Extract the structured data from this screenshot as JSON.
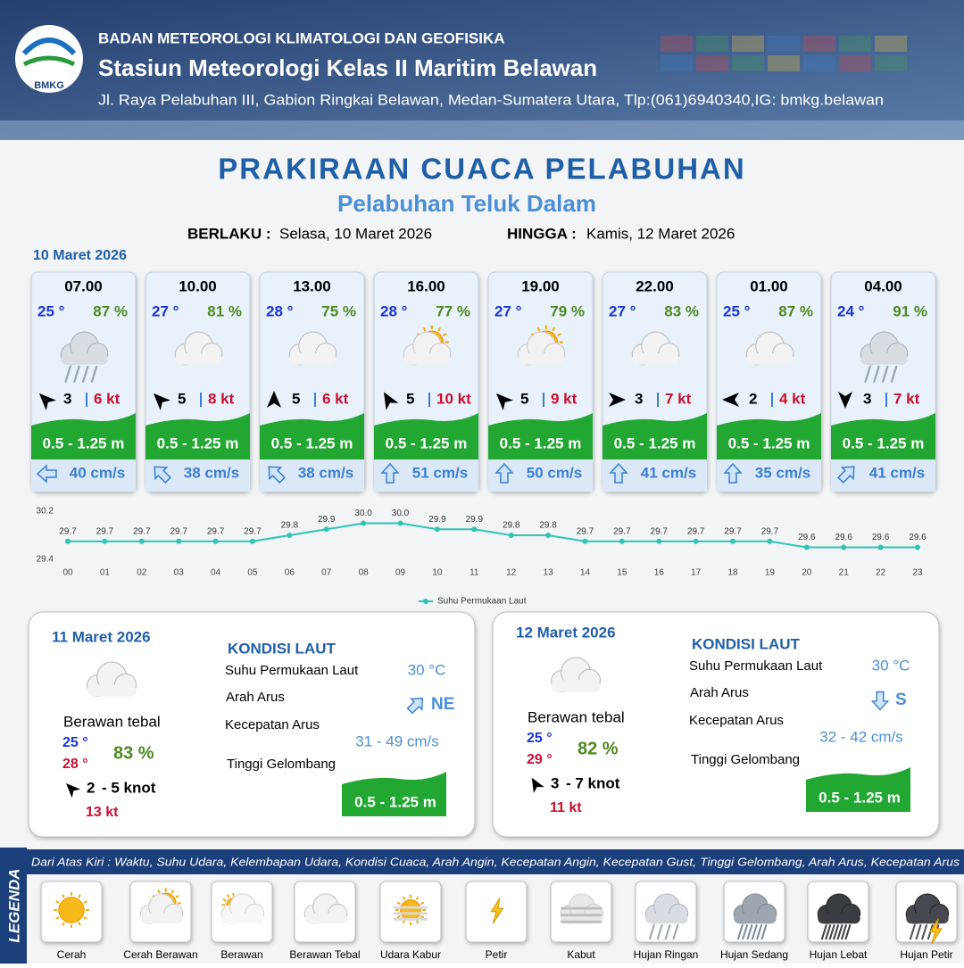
{
  "header": {
    "logo": "BMKG",
    "agency": "BADAN METEOROLOGI KLIMATOLOGI DAN GEOFISIKA",
    "station": "Stasiun Meteorologi Kelas II Maritim Belawan",
    "address": "Jl. Raya Pelabuhan III, Gabion Ringkai Belawan, Medan-Sumatera Utara, Tlp:(061)6940340,IG: bmkg.belawan"
  },
  "title": "PRAKIRAAN CUACA PELABUHAN",
  "subtitle": "Pelabuhan Teluk Dalam",
  "validity": {
    "from_label": "BERLAKU :",
    "from": "Selasa, 10 Maret 2026",
    "to_label": "HINGGA :",
    "to": "Kamis, 12 Maret 2026"
  },
  "today": {
    "date": "10 Maret 2026",
    "forecasts": [
      {
        "time": "07.00",
        "temperature": "25 °",
        "humidity": "87 %",
        "icon": "hujan-ringan",
        "wind_arrow_deg": 315,
        "wind_speed": "3",
        "gust": "6 kt",
        "wave": "0.5 - 1.25 m",
        "current_arrow_deg": 270,
        "current_speed": "40 cm/s"
      },
      {
        "time": "10.00",
        "temperature": "27 °",
        "humidity": "81 %",
        "icon": "berawan-tebal",
        "wind_arrow_deg": 315,
        "wind_speed": "5",
        "gust": "8 kt",
        "wave": "0.5 - 1.25 m",
        "current_arrow_deg": 315,
        "current_speed": "38 cm/s"
      },
      {
        "time": "13.00",
        "temperature": "28 °",
        "humidity": "75 %",
        "icon": "berawan-tebal",
        "wind_arrow_deg": 0,
        "wind_speed": "5",
        "gust": "6 kt",
        "wave": "0.5 - 1.25 m",
        "current_arrow_deg": 315,
        "current_speed": "38 cm/s"
      },
      {
        "time": "16.00",
        "temperature": "28 °",
        "humidity": "77 %",
        "icon": "cerah-berawan",
        "wind_arrow_deg": 330,
        "wind_speed": "5",
        "gust": "10 kt",
        "wave": "0.5 - 1.25 m",
        "current_arrow_deg": 0,
        "current_speed": "51 cm/s"
      },
      {
        "time": "19.00",
        "temperature": "27 °",
        "humidity": "79 %",
        "icon": "cerah-berawan",
        "wind_arrow_deg": 315,
        "wind_speed": "5",
        "gust": "9 kt",
        "wave": "0.5 - 1.25 m",
        "current_arrow_deg": 0,
        "current_speed": "50 cm/s"
      },
      {
        "time": "22.00",
        "temperature": "27 °",
        "humidity": "83 %",
        "icon": "berawan-tebal",
        "wind_arrow_deg": 90,
        "wind_speed": "3",
        "gust": "7 kt",
        "wave": "0.5 - 1.25 m",
        "current_arrow_deg": 0,
        "current_speed": "41 cm/s"
      },
      {
        "time": "01.00",
        "temperature": "25 °",
        "humidity": "87 %",
        "icon": "berawan-tebal",
        "wind_arrow_deg": 270,
        "wind_speed": "2",
        "gust": "4 kt",
        "wave": "0.5 - 1.25 m",
        "current_arrow_deg": 0,
        "current_speed": "35 cm/s"
      },
      {
        "time": "04.00",
        "temperature": "24 °",
        "humidity": "91 %",
        "icon": "hujan-ringan",
        "wind_arrow_deg": 180,
        "wind_speed": "3",
        "gust": "7 kt",
        "wave": "0.5 - 1.25 m",
        "current_arrow_deg": 45,
        "current_speed": "41 cm/s"
      }
    ]
  },
  "chart_data": {
    "type": "line",
    "categories": [
      "00",
      "01",
      "02",
      "03",
      "04",
      "05",
      "06",
      "07",
      "08",
      "09",
      "10",
      "11",
      "12",
      "13",
      "14",
      "15",
      "16",
      "17",
      "18",
      "19",
      "20",
      "21",
      "22",
      "23"
    ],
    "series": [
      {
        "name": "Suhu Permukaan Laut",
        "color": "#2ec4b6",
        "values": [
          29.7,
          29.7,
          29.7,
          29.7,
          29.7,
          29.7,
          29.8,
          29.9,
          30.0,
          30.0,
          29.9,
          29.9,
          29.8,
          29.8,
          29.7,
          29.7,
          29.7,
          29.7,
          29.7,
          29.7,
          29.6,
          29.6,
          29.6,
          29.6
        ],
        "value_labels": [
          "29.7",
          "29.7",
          "29.7",
          "29.7",
          "29.7",
          "29.7",
          "29.8",
          "29.9",
          "30.0",
          "30.0",
          "29.9",
          "29.9",
          "29.8",
          "29.8",
          "29.7",
          "29.7",
          "29.7",
          "29.7",
          "29.7",
          "29.7",
          "29.6",
          "29.6",
          "29.6",
          "29.6"
        ]
      }
    ],
    "ylim": [
      29.4,
      30.2
    ],
    "yticks": [
      29.4,
      30.2
    ],
    "grid": false,
    "legend": "bottom"
  },
  "days": [
    {
      "date": "11 Maret 2026",
      "icon": "berawan-tebal",
      "weather": "Berawan tebal",
      "temp_min": "25 °",
      "temp_max": "28 °",
      "humidity": "83 %",
      "wind_arrow_deg": 315,
      "wind_low": "2",
      "wind_high": "- 5 knot",
      "gust": "13 kt",
      "sea": {
        "title": "KONDISI LAUT",
        "sst_label": "Suhu Permukaan Laut",
        "sst": "30 °C",
        "dir_label": "Arah Arus",
        "current_arrow_deg": 45,
        "dir": "NE",
        "speed_label": "Kecepatan Arus",
        "speed": "31 - 49 cm/s",
        "wave_label": "Tinggi Gelombang",
        "wave": "0.5 - 1.25 m"
      }
    },
    {
      "date": "12 Maret 2026",
      "icon": "berawan-tebal",
      "weather": "Berawan tebal",
      "temp_min": "25 °",
      "temp_max": "29 °",
      "humidity": "82 %",
      "wind_arrow_deg": 330,
      "wind_low": "3",
      "wind_high": "- 7 knot",
      "gust": "11 kt",
      "sea": {
        "title": "KONDISI LAUT",
        "sst_label": "Suhu Permukaan Laut",
        "sst": "30 °C",
        "dir_label": "Arah Arus",
        "current_arrow_deg": 180,
        "dir": "S",
        "speed_label": "Kecepatan Arus",
        "speed": "32  - 42 cm/s",
        "wave_label": "Tinggi Gelombang",
        "wave": "0.5 - 1.25 m"
      }
    }
  ],
  "legend": {
    "title": "LEGENDA",
    "description": "Dari Atas Kiri : Waktu, Suhu Udara, Kelembapan Udara, Kondisi Cuaca, Arah Angin, Kecepatan Angin, Kecepatan Gust, Tinggi Gelombang, Arah Arus, Kecepatan Arus",
    "items": [
      {
        "label": "Cerah",
        "icon": "cerah"
      },
      {
        "label": "Cerah Berawan",
        "icon": "cerah-berawan"
      },
      {
        "label": "Berawan",
        "icon": "berawan"
      },
      {
        "label": "Berawan Tebal",
        "icon": "berawan-tebal"
      },
      {
        "label": "Udara Kabur",
        "icon": "udara-kabur"
      },
      {
        "label": "Petir",
        "icon": "petir"
      },
      {
        "label": "Kabut",
        "icon": "kabut"
      },
      {
        "label": "Hujan Ringan",
        "icon": "hujan-ringan"
      },
      {
        "label": "Hujan Sedang",
        "icon": "hujan-sedang"
      },
      {
        "label": "Hujan Lebat",
        "icon": "hujan-lebat"
      },
      {
        "label": "Hujan Petir",
        "icon": "hujan-petir"
      }
    ]
  }
}
